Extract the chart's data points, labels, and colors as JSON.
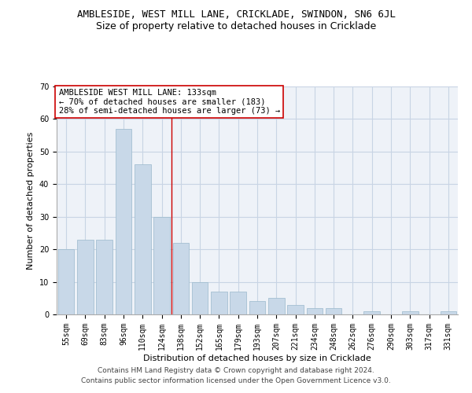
{
  "title": "AMBLESIDE, WEST MILL LANE, CRICKLADE, SWINDON, SN6 6JL",
  "subtitle": "Size of property relative to detached houses in Cricklade",
  "xlabel": "Distribution of detached houses by size in Cricklade",
  "ylabel": "Number of detached properties",
  "categories": [
    "55sqm",
    "69sqm",
    "83sqm",
    "96sqm",
    "110sqm",
    "124sqm",
    "138sqm",
    "152sqm",
    "165sqm",
    "179sqm",
    "193sqm",
    "207sqm",
    "221sqm",
    "234sqm",
    "248sqm",
    "262sqm",
    "276sqm",
    "290sqm",
    "303sqm",
    "317sqm",
    "331sqm"
  ],
  "values": [
    20,
    23,
    23,
    57,
    46,
    30,
    22,
    10,
    7,
    7,
    4,
    5,
    3,
    2,
    2,
    0,
    1,
    0,
    1,
    0,
    1
  ],
  "bar_color": "#c8d8e8",
  "bar_edge_color": "#9ab8cc",
  "grid_color": "#c8d4e4",
  "background_color": "#eef2f8",
  "vline_x_index": 5.5,
  "vline_color": "#cc0000",
  "annotation_text": "AMBLESIDE WEST MILL LANE: 133sqm\n← 70% of detached houses are smaller (183)\n28% of semi-detached houses are larger (73) →",
  "annotation_box_color": "#ffffff",
  "annotation_box_edge": "#cc0000",
  "footnote1": "Contains HM Land Registry data © Crown copyright and database right 2024.",
  "footnote2": "Contains public sector information licensed under the Open Government Licence v3.0.",
  "ylim": [
    0,
    70
  ],
  "title_fontsize": 9,
  "subtitle_fontsize": 9,
  "axis_label_fontsize": 8,
  "tick_fontsize": 7,
  "annotation_fontsize": 7.5,
  "footnote_fontsize": 6.5
}
